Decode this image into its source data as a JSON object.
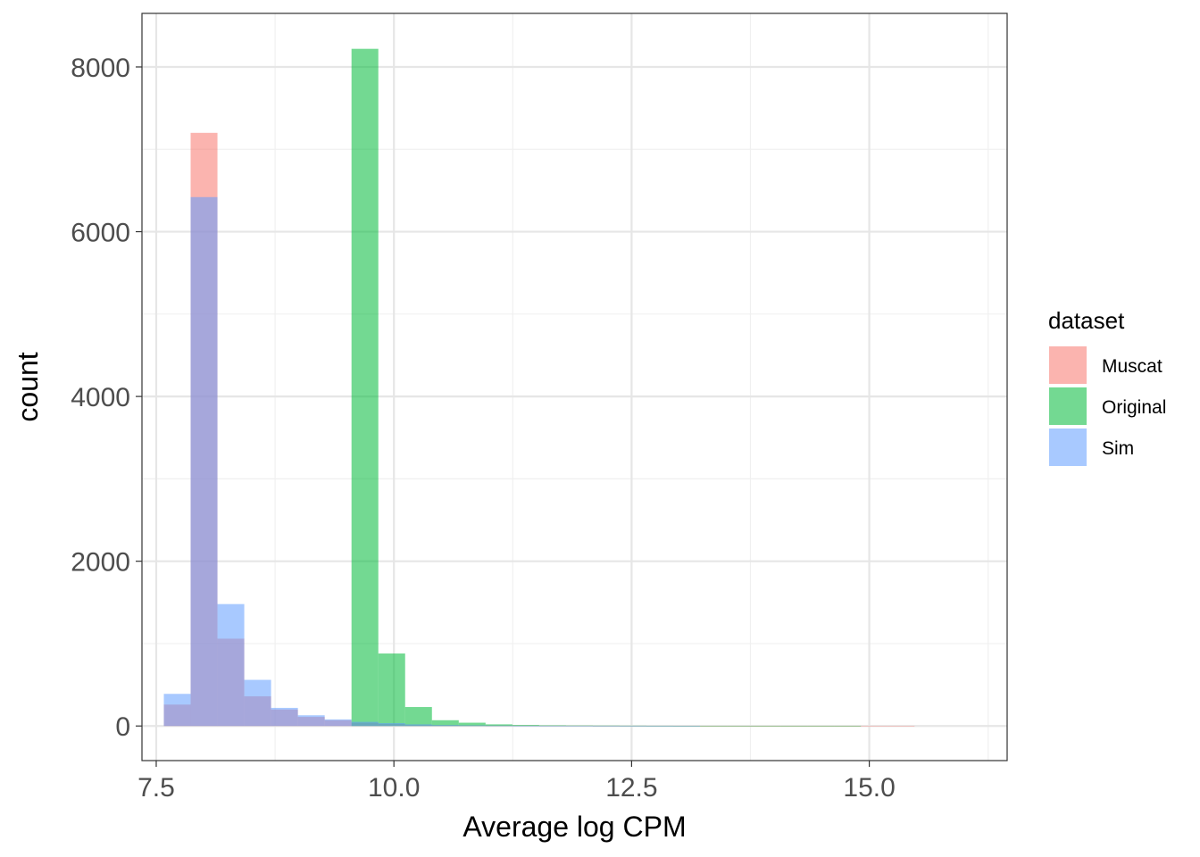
{
  "chart_data": {
    "type": "bar",
    "subtype": "histogram",
    "title": "",
    "xlabel": "Average log CPM",
    "ylabel": "count",
    "xlim": [
      7.35,
      16.45
    ],
    "ylim": [
      -420,
      8650
    ],
    "xticks": [
      7.5,
      10.0,
      12.5,
      15.0
    ],
    "xtick_labels": [
      "7.5",
      "10.0",
      "12.5",
      "15.0"
    ],
    "yticks": [
      0,
      2000,
      4000,
      6000,
      8000
    ],
    "ytick_labels": [
      "0",
      "2000",
      "4000",
      "6000",
      "8000"
    ],
    "grid": true,
    "legend": {
      "title": "dataset",
      "position": "right"
    },
    "bin_width": 0.282,
    "bin_start": 7.58,
    "series": [
      {
        "name": "Muscat",
        "color": "#F8766D",
        "values": [
          260,
          7200,
          1060,
          360,
          200,
          110,
          70,
          40,
          25,
          15,
          10,
          8,
          5,
          5,
          4,
          4,
          3,
          3,
          3,
          3,
          2,
          2,
          2,
          2,
          2,
          2,
          1,
          1,
          0,
          0
        ]
      },
      {
        "name": "Original",
        "color": "#00BA38",
        "values": [
          0,
          0,
          0,
          0,
          0,
          0,
          0,
          8220,
          880,
          230,
          70,
          40,
          20,
          12,
          8,
          6,
          5,
          4,
          3,
          2,
          2,
          2,
          1,
          1,
          1,
          1,
          0,
          0,
          0,
          0
        ]
      },
      {
        "name": "Sim",
        "color": "#619CFF",
        "values": [
          390,
          6420,
          1480,
          560,
          220,
          130,
          80,
          50,
          35,
          20,
          12,
          8,
          5,
          3,
          2,
          2,
          1,
          1,
          1,
          1,
          0,
          0,
          0,
          0,
          0,
          0,
          0,
          0,
          0,
          0
        ]
      }
    ]
  }
}
